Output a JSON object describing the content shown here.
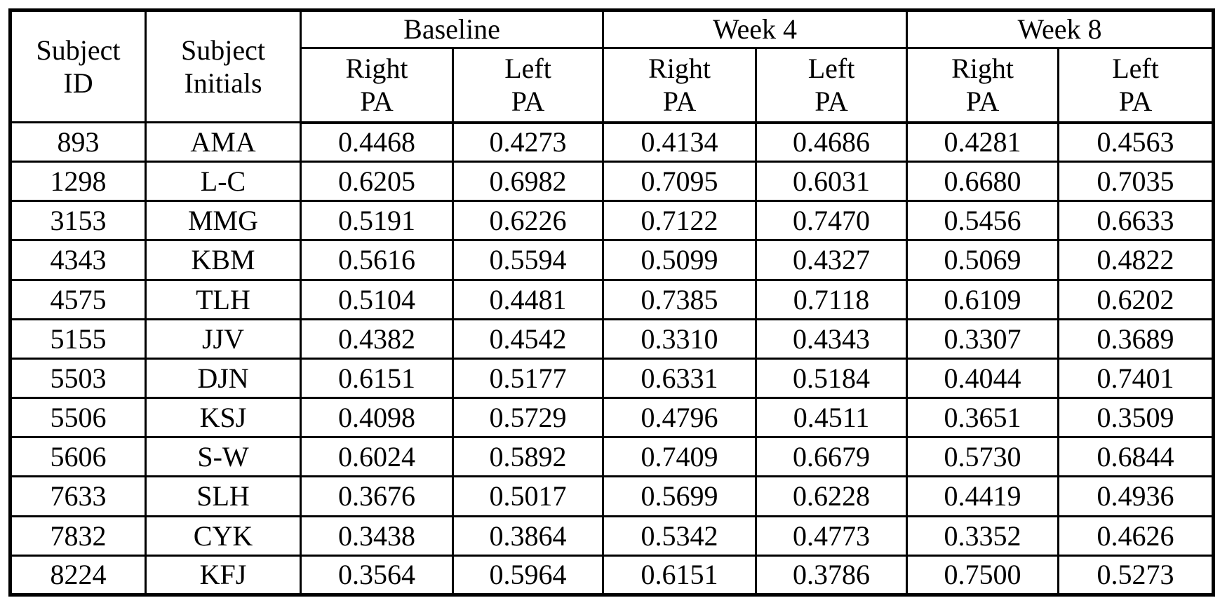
{
  "table": {
    "header": {
      "subject_id": "Subject\nID",
      "subject_initials": "Subject\nInitials",
      "groups": [
        {
          "label": "Baseline",
          "sub": [
            "Right\nPA",
            "Left\nPA"
          ]
        },
        {
          "label": "Week 4",
          "sub": [
            "Right\nPA",
            "Left\nPA"
          ]
        },
        {
          "label": "Week 8",
          "sub": [
            "Right\nPA",
            "Left\nPA"
          ]
        }
      ]
    },
    "rows": [
      {
        "id": "893",
        "initials": "AMA",
        "values": [
          "0.4468",
          "0.4273",
          "0.4134",
          "0.4686",
          "0.4281",
          "0.4563"
        ]
      },
      {
        "id": "1298",
        "initials": "L-C",
        "values": [
          "0.6205",
          "0.6982",
          "0.7095",
          "0.6031",
          "0.6680",
          "0.7035"
        ]
      },
      {
        "id": "3153",
        "initials": "MMG",
        "values": [
          "0.5191",
          "0.6226",
          "0.7122",
          "0.7470",
          "0.5456",
          "0.6633"
        ]
      },
      {
        "id": "4343",
        "initials": "KBM",
        "values": [
          "0.5616",
          "0.5594",
          "0.5099",
          "0.4327",
          "0.5069",
          "0.4822"
        ]
      },
      {
        "id": "4575",
        "initials": "TLH",
        "values": [
          "0.5104",
          "0.4481",
          "0.7385",
          "0.7118",
          "0.6109",
          "0.6202"
        ]
      },
      {
        "id": "5155",
        "initials": "JJV",
        "values": [
          "0.4382",
          "0.4542",
          "0.3310",
          "0.4343",
          "0.3307",
          "0.3689"
        ]
      },
      {
        "id": "5503",
        "initials": "DJN",
        "values": [
          "0.6151",
          "0.5177",
          "0.6331",
          "0.5184",
          "0.4044",
          "0.7401"
        ]
      },
      {
        "id": "5506",
        "initials": "KSJ",
        "values": [
          "0.4098",
          "0.5729",
          "0.4796",
          "0.4511",
          "0.3651",
          "0.3509"
        ]
      },
      {
        "id": "5606",
        "initials": "S-W",
        "values": [
          "0.6024",
          "0.5892",
          "0.7409",
          "0.6679",
          "0.5730",
          "0.6844"
        ]
      },
      {
        "id": "7633",
        "initials": "SLH",
        "values": [
          "0.3676",
          "0.5017",
          "0.5699",
          "0.6228",
          "0.4419",
          "0.4936"
        ]
      },
      {
        "id": "7832",
        "initials": "CYK",
        "values": [
          "0.3438",
          "0.3864",
          "0.5342",
          "0.4773",
          "0.3352",
          "0.4626"
        ]
      },
      {
        "id": "8224",
        "initials": "KFJ",
        "values": [
          "0.3564",
          "0.5964",
          "0.6151",
          "0.3786",
          "0.7500",
          "0.5273"
        ]
      }
    ],
    "colors": {
      "border": "#000000",
      "text": "#000000",
      "background": "#ffffff"
    }
  }
}
